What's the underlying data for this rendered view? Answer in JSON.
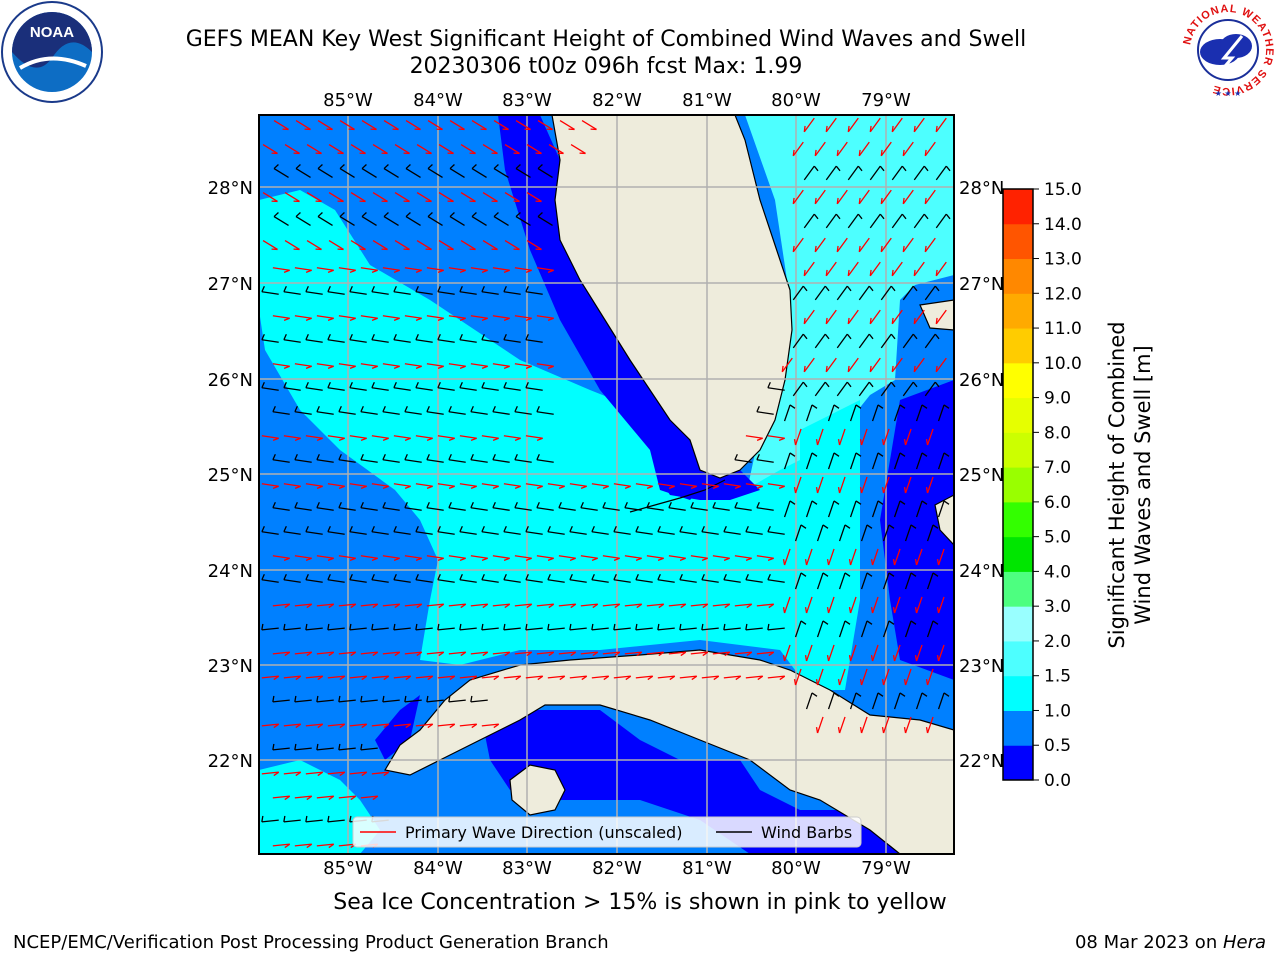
{
  "title": {
    "line1": "GEFS MEAN Key West Significant Height of Combined Wind Waves and Swell",
    "line2": "20230306 t00z 096h fcst   Max: 1.99"
  },
  "map": {
    "lon_labels": [
      "85°W",
      "84°W",
      "83°W",
      "82°W",
      "81°W",
      "80°W",
      "79°W"
    ],
    "lat_labels": [
      "28°N",
      "27°N",
      "26°N",
      "25°N",
      "24°N",
      "23°N",
      "22°N"
    ],
    "legend": {
      "wave_direction": "Primary Wave Direction (unscaled)",
      "wind_barbs": "Wind Barbs"
    }
  },
  "colorbar": {
    "label_line1": "Significant Height of Combined",
    "label_line2": "Wind Waves and Swell [m]",
    "ticks": [
      "0.0",
      "0.5",
      "1.0",
      "1.5",
      "2.0",
      "3.0",
      "4.0",
      "5.0",
      "6.0",
      "7.0",
      "8.0",
      "9.0",
      "10.0",
      "11.0",
      "12.0",
      "13.0",
      "14.0",
      "15.0"
    ],
    "colors": [
      "#0000ff",
      "#0080ff",
      "#00ffff",
      "#4dffff",
      "#99ffff",
      "#4dff80",
      "#00e600",
      "#33ff00",
      "#99ff00",
      "#ccff00",
      "#e6ff00",
      "#ffff00",
      "#ffcc00",
      "#ffaa00",
      "#ff8800",
      "#ff5500",
      "#ff2200"
    ]
  },
  "colors": {
    "land": "#eeecdc",
    "grid": "#b0b0b0",
    "wave_arrow": "#ff0000",
    "barb": "#000000"
  },
  "logos": {
    "noaa_text": "NOAA",
    "nws_ring": "NATIONAL WEATHER SERVICE"
  },
  "notes": {
    "sea_ice": "Sea Ice Concentration > 15% is shown in pink to yellow"
  },
  "footer": {
    "credit": "NCEP/EMC/Verification Post Processing Product Generation Branch",
    "date": "08 Mar 2023 on ",
    "machine": "Hera"
  }
}
